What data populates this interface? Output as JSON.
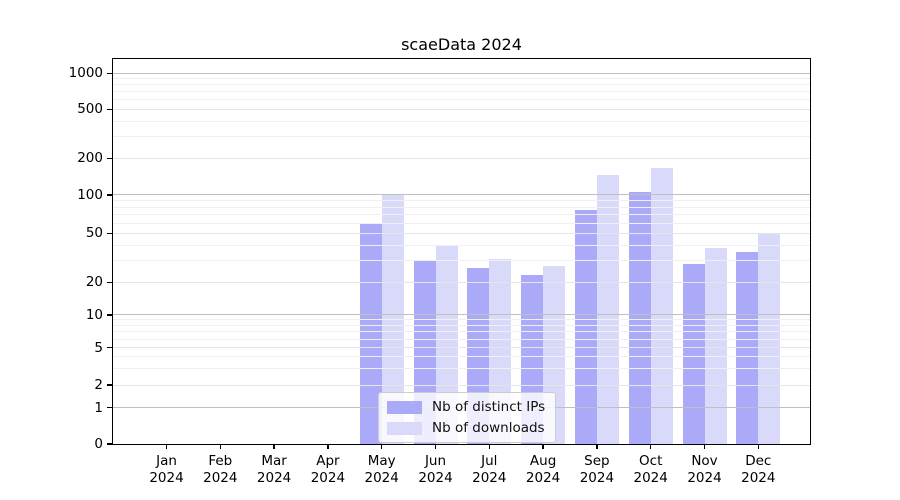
{
  "title": "scaeData 2024",
  "legend": {
    "items": [
      {
        "label": "Nb of distinct IPs",
        "color": "#aaaaf8"
      },
      {
        "label": "Nb of downloads",
        "color": "#d9d9fa"
      }
    ]
  },
  "y_axis": {
    "tick_labels": [
      "0",
      "1",
      "2",
      "5",
      "10",
      "20",
      "50",
      "100",
      "200",
      "500",
      "1000"
    ]
  },
  "x_axis": {
    "tick_labels": [
      "Jan 2024",
      "Feb 2024",
      "Mar 2024",
      "Apr 2024",
      "May 2024",
      "Jun 2024",
      "Jul 2024",
      "Aug 2024",
      "Sep 2024",
      "Oct 2024",
      "Nov 2024",
      "Dec 2024"
    ]
  },
  "chart_data": {
    "type": "bar",
    "title": "scaeData 2024",
    "categories": [
      "Jan 2024",
      "Feb 2024",
      "Mar 2024",
      "Apr 2024",
      "May 2024",
      "Jun 2024",
      "Jul 2024",
      "Aug 2024",
      "Sep 2024",
      "Oct 2024",
      "Nov 2024",
      "Dec 2024"
    ],
    "series": [
      {
        "name": "Nb of distinct IPs",
        "color": "#aaaaf8",
        "values": [
          0,
          0,
          0,
          0,
          60,
          30,
          26,
          23,
          76,
          105,
          28,
          35
        ]
      },
      {
        "name": "Nb of downloads",
        "color": "#d9d9fa",
        "values": [
          0,
          0,
          0,
          0,
          100,
          40,
          31,
          27,
          145,
          166,
          38,
          50
        ]
      }
    ],
    "yscale": "symlog",
    "y_ticks": [
      0,
      1,
      2,
      5,
      10,
      20,
      50,
      100,
      200,
      500,
      1000
    ],
    "ylim": [
      0,
      1300
    ],
    "grid": "both",
    "legend_position": "lower-center-inside"
  }
}
